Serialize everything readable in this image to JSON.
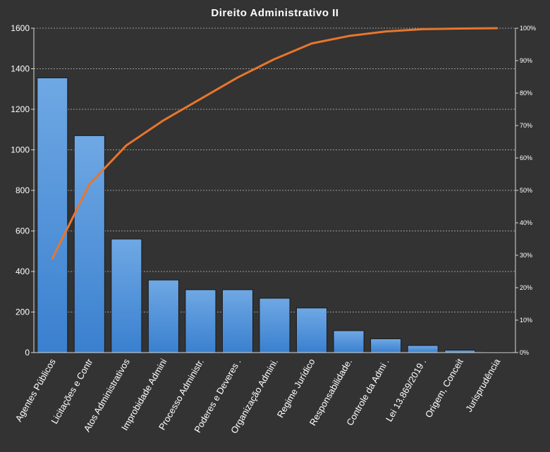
{
  "chart_data": {
    "type": "bar",
    "title": "Direito  Administrativo  II",
    "categories": [
      "Agentes Públicos",
      "Licitações e Contr",
      "Atos Administrativos",
      "Improbidade Admini",
      "Processo Administr.",
      "Poderes e Deveres .",
      "Organização Admini.",
      "Regime Jurídico",
      "Responsabilidade.",
      "Controle da Admi .",
      "Lei 13.869/2019 .",
      "Origem, Conceit",
      "Jurisprudência"
    ],
    "series": [
      {
        "type": "bar",
        "values": [
          1355,
          1070,
          560,
          358,
          310,
          310,
          268,
          220,
          108,
          68,
          35,
          12,
          3
        ],
        "color": "#4a90d9"
      },
      {
        "type": "line",
        "axis": "right",
        "values": [
          29.0,
          51.9,
          63.9,
          71.6,
          78.2,
          84.8,
          90.5,
          95.3,
          97.6,
          99.0,
          99.7,
          99.9,
          100.0
        ],
        "color": "#e8762c"
      }
    ],
    "ylim": [
      0,
      1600
    ],
    "yticks": [
      0,
      200,
      400,
      600,
      800,
      1000,
      1200,
      1400,
      1600
    ],
    "y2lim": [
      0,
      100
    ],
    "y2ticks": [
      "0%",
      "10%",
      "20%",
      "30%",
      "40%",
      "50%",
      "60%",
      "70%",
      "80%",
      "90%",
      "100%"
    ],
    "grid": true,
    "legend": "none"
  }
}
